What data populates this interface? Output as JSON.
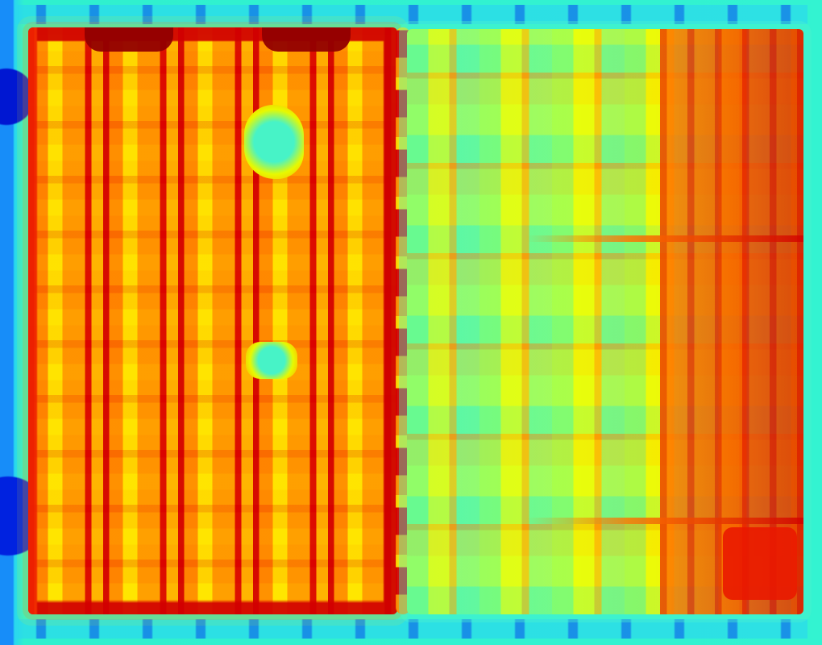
{
  "image": {
    "type": "thermal-heatmap-ui",
    "palette": [
      "#0017d2",
      "#178df9",
      "#33f3d1",
      "#d8ff2a",
      "#ffd700",
      "#ff7d00",
      "#d20000",
      "#930000"
    ],
    "visible_text": []
  }
}
